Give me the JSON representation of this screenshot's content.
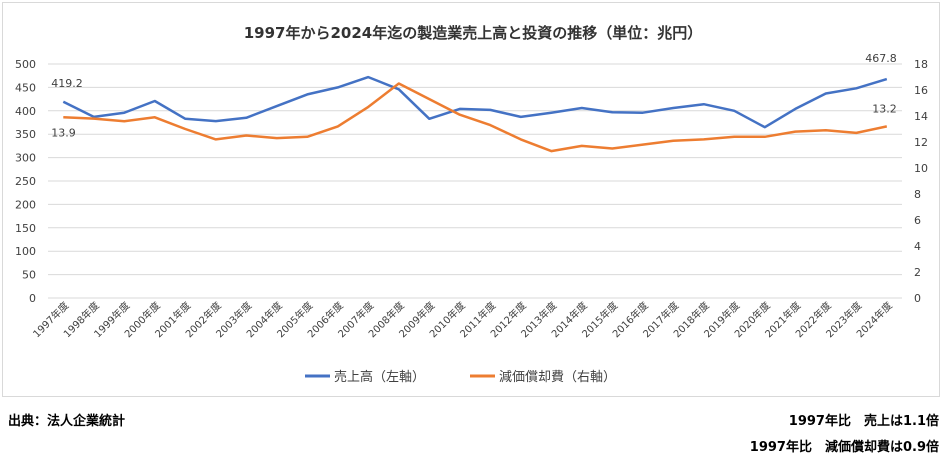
{
  "chart_data": {
    "type": "line",
    "title": "1997年から2024年迄の製造業売上高と投資の推移（単位：兆円）",
    "categories": [
      "1997年度",
      "1998年度",
      "1999年度",
      "2000年度",
      "2001年度",
      "2002年度",
      "2003年度",
      "2004年度",
      "2005年度",
      "2006年度",
      "2007年度",
      "2008年度",
      "2009年度",
      "2010年度",
      "2011年度",
      "2012年度",
      "2013年度",
      "2014年度",
      "2015年度",
      "2016年度",
      "2017年度",
      "2018年度",
      "2019年度",
      "2020年度",
      "2021年度",
      "2022年度",
      "2023年度",
      "2024年度"
    ],
    "series": [
      {
        "name": "売上高（左軸）",
        "axis": "left",
        "color": "#4472c4",
        "values": [
          419.2,
          387,
          396,
          421,
          383,
          378,
          385,
          410,
          435,
          450,
          472,
          446,
          383,
          404,
          402,
          387,
          396,
          406,
          397,
          396,
          406,
          414,
          400,
          365,
          404,
          437,
          448,
          467.8
        ],
        "labels": {
          "first": "419.2",
          "last": "467.8"
        }
      },
      {
        "name": "減価償却費（右軸）",
        "axis": "right",
        "color": "#ed7d31",
        "values": [
          13.9,
          13.8,
          13.6,
          13.9,
          13.0,
          12.2,
          12.5,
          12.3,
          12.4,
          13.2,
          14.7,
          16.5,
          15.3,
          14.1,
          13.3,
          12.2,
          11.3,
          11.7,
          11.5,
          11.8,
          12.1,
          12.2,
          12.4,
          12.4,
          12.8,
          12.9,
          12.7,
          13.2
        ],
        "labels": {
          "first": "13.9",
          "last": "13.2"
        }
      }
    ],
    "ylim_left": [
      0,
      500
    ],
    "yticks_left": [
      "0",
      "50",
      "100",
      "150",
      "200",
      "250",
      "300",
      "350",
      "400",
      "450",
      "500"
    ],
    "ylim_right": [
      0,
      18
    ],
    "yticks_right": [
      "0",
      "2",
      "4",
      "6",
      "8",
      "10",
      "12",
      "14",
      "16",
      "18"
    ],
    "grid": true,
    "legend": "bottom"
  },
  "footer": {
    "source": "出典：法人企業統計",
    "note1": "1997年比　売上は1.1倍",
    "note2": "1997年比　減価償却費は0.9倍"
  }
}
